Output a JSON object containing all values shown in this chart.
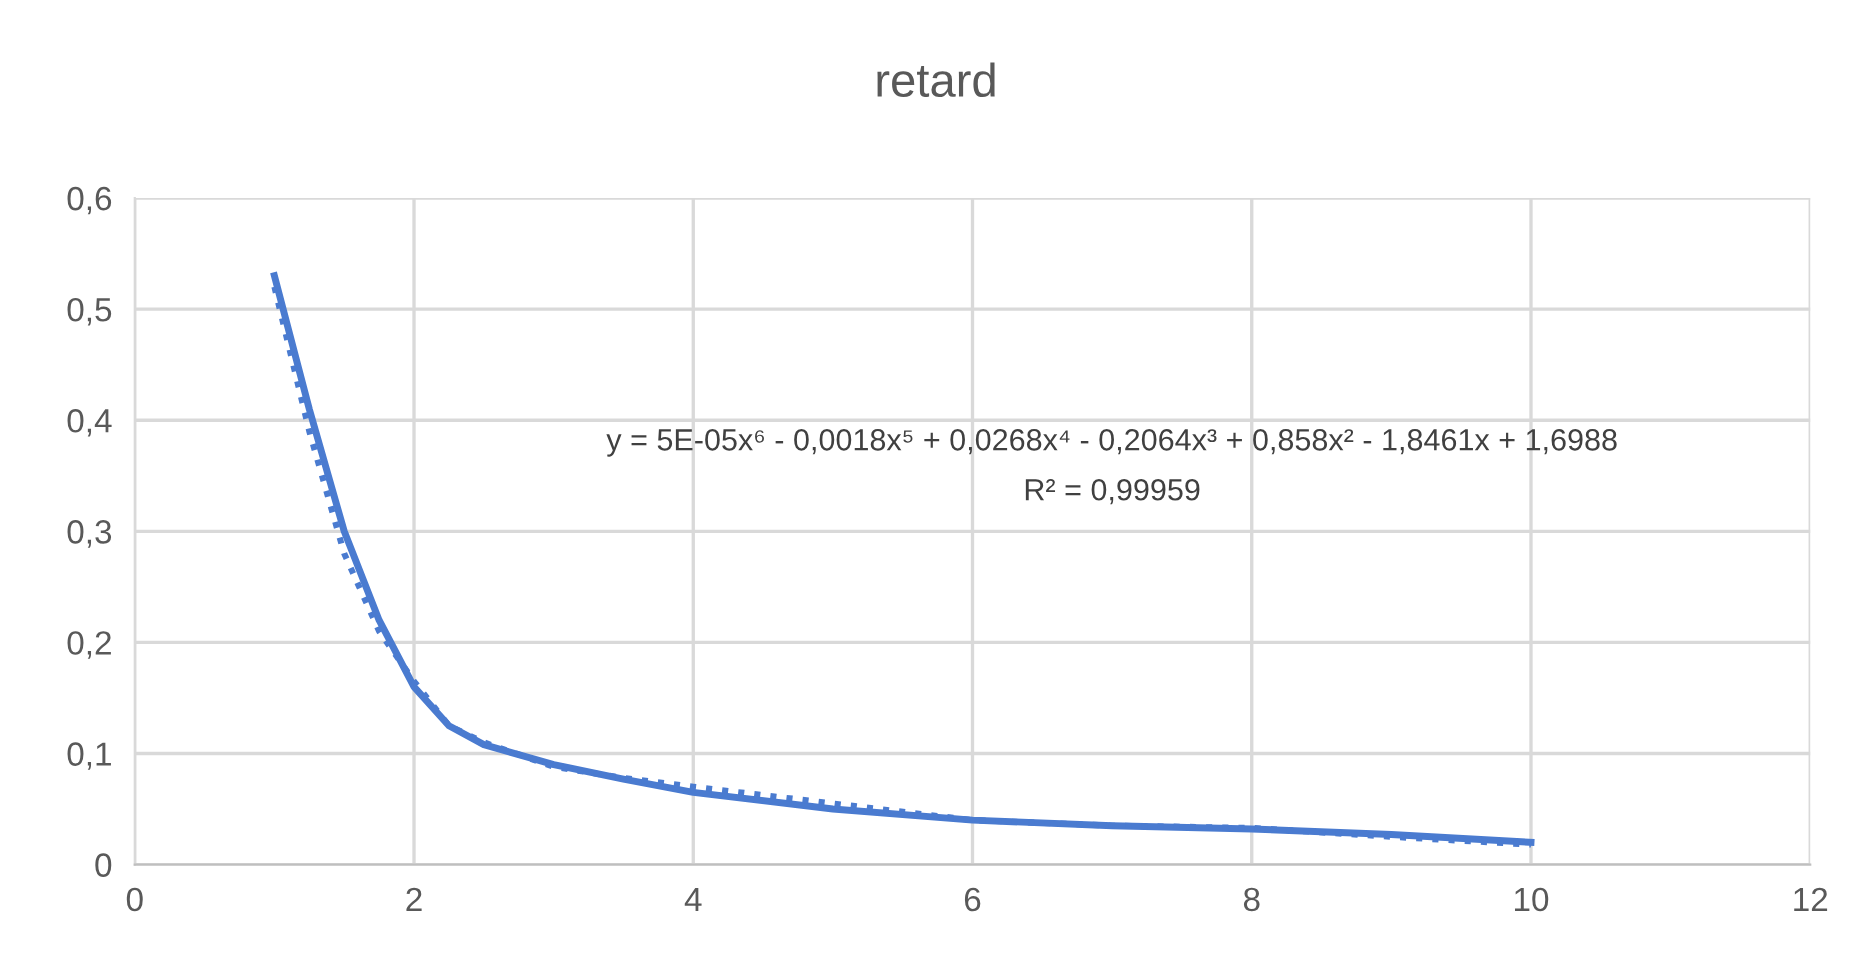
{
  "chart_data": {
    "type": "line",
    "title": "retard",
    "series": [
      {
        "color": "#4a7bd0",
        "line_style": "solid",
        "x": [
          1,
          1.25,
          1.5,
          1.75,
          2,
          2.25,
          2.5,
          3,
          3.5,
          4,
          5,
          6,
          7,
          8,
          9,
          10
        ],
        "values": [
          0.53,
          0.41,
          0.3,
          0.22,
          0.16,
          0.125,
          0.108,
          0.09,
          0.077,
          0.065,
          0.05,
          0.04,
          0.035,
          0.032,
          0.027,
          0.02
        ]
      },
      {
        "color": "#4a7bd0",
        "line_style": "dotted",
        "x": [
          1,
          1.25,
          1.5,
          1.75,
          2,
          2.25,
          2.5,
          3,
          3.5,
          4,
          5,
          6,
          7,
          8,
          9,
          10
        ],
        "values": [
          0.52,
          0.39,
          0.28,
          0.21,
          0.165,
          0.125,
          0.11,
          0.088,
          0.078,
          0.07,
          0.055,
          0.04,
          0.035,
          0.033,
          0.025,
          0.018
        ]
      }
    ],
    "annotations": [
      "y = 5E-05x⁶ - 0,0018x⁵ + 0,0268x⁴ - 0,2064x³ + 0,858x² - 1,8461x + 1,6988",
      "R² = 0,99959"
    ],
    "xlim": [
      0,
      12
    ],
    "xticks": [
      0,
      2,
      4,
      6,
      8,
      10,
      12
    ],
    "ylim": [
      0,
      0.6
    ],
    "yticks": [
      {
        "value": 0,
        "label": "0"
      },
      {
        "value": 0.1,
        "label": "0,1"
      },
      {
        "value": 0.2,
        "label": "0,2"
      },
      {
        "value": 0.3,
        "label": "0,3"
      },
      {
        "value": 0.4,
        "label": "0,4"
      },
      {
        "value": 0.5,
        "label": "0,5"
      },
      {
        "value": 0.6,
        "label": "0,6"
      }
    ],
    "grid": true,
    "marker": "none"
  }
}
